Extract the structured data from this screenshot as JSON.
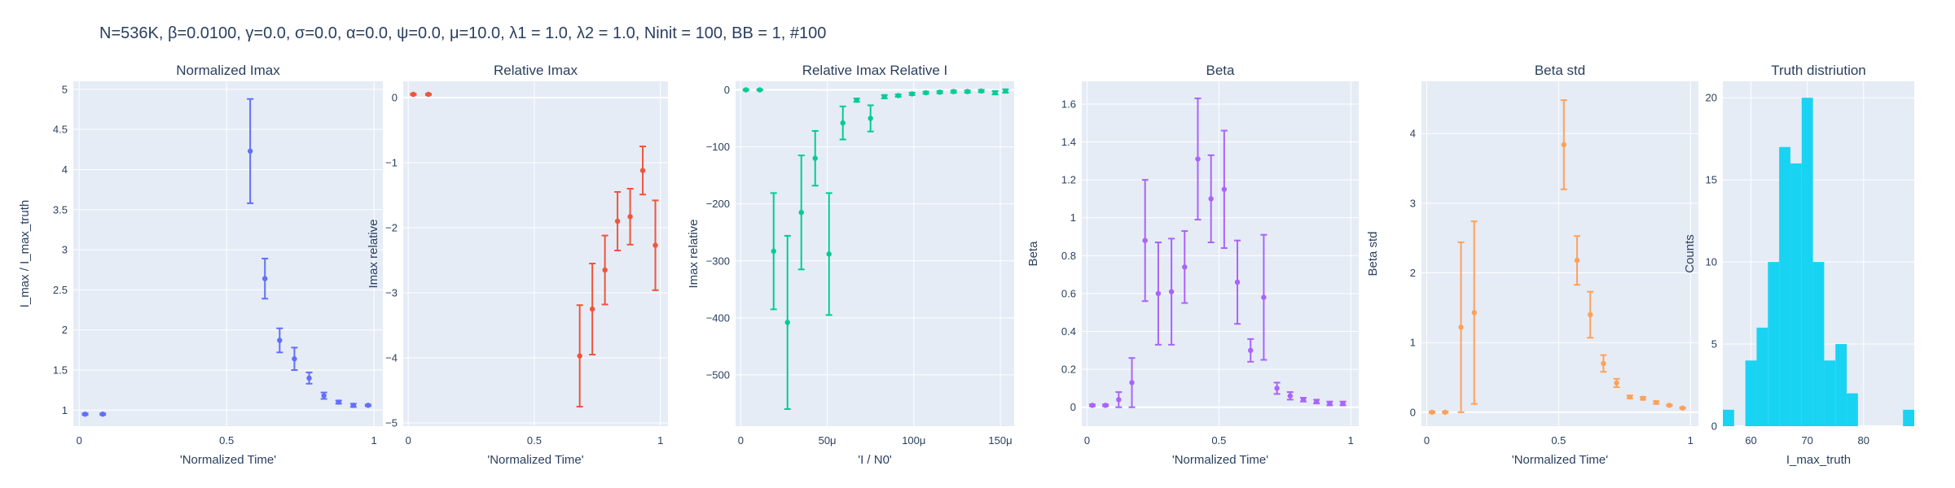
{
  "figure": {
    "title": "N=536K, β=0.0100, γ=0.0, σ=0.0,  α=0.0, ψ=0.0, μ=10.0, λ1 = 1.0, λ2 = 1.0, Ninit = 100, BB = 1, #100"
  },
  "colors": {
    "plot_bg": "#e5ecf6",
    "grid": "#ffffff",
    "text": "#2a3f5f"
  },
  "chart_data": [
    {
      "type": "scatter",
      "title": "Normalized Imax",
      "xlabel": "'Normalized Time'",
      "ylabel": "I_max / I_max_truth",
      "color": "#636efa",
      "xlim": [
        -0.02,
        1.03
      ],
      "ylim": [
        0.8,
        5.1
      ],
      "xticks": [
        {
          "v": 0,
          "t": "0"
        },
        {
          "v": 0.5,
          "t": "0.5"
        },
        {
          "v": 1,
          "t": "1"
        }
      ],
      "yticks": [
        {
          "v": 1,
          "t": "1"
        },
        {
          "v": 1.5,
          "t": "1.5"
        },
        {
          "v": 2,
          "t": "2"
        },
        {
          "v": 2.5,
          "t": "2.5"
        },
        {
          "v": 3,
          "t": "3"
        },
        {
          "v": 3.5,
          "t": "3.5"
        },
        {
          "v": 4,
          "t": "4"
        },
        {
          "v": 4.5,
          "t": "4.5"
        },
        {
          "v": 5,
          "t": "5"
        }
      ],
      "points": [
        {
          "x": 0.02,
          "y": 0.95,
          "lo": 0.94,
          "hi": 0.96
        },
        {
          "x": 0.08,
          "y": 0.95,
          "lo": 0.94,
          "hi": 0.96
        },
        {
          "x": 0.58,
          "y": 4.23,
          "lo": 3.58,
          "hi": 4.88
        },
        {
          "x": 0.63,
          "y": 2.64,
          "lo": 2.39,
          "hi": 2.89
        },
        {
          "x": 0.68,
          "y": 1.87,
          "lo": 1.72,
          "hi": 2.02
        },
        {
          "x": 0.73,
          "y": 1.64,
          "lo": 1.5,
          "hi": 1.78
        },
        {
          "x": 0.78,
          "y": 1.4,
          "lo": 1.33,
          "hi": 1.47
        },
        {
          "x": 0.83,
          "y": 1.18,
          "lo": 1.14,
          "hi": 1.22
        },
        {
          "x": 0.88,
          "y": 1.1,
          "lo": 1.08,
          "hi": 1.12
        },
        {
          "x": 0.93,
          "y": 1.06,
          "lo": 1.04,
          "hi": 1.08
        },
        {
          "x": 0.98,
          "y": 1.06,
          "lo": 1.05,
          "hi": 1.07
        }
      ]
    },
    {
      "type": "scatter",
      "title": "Relative Imax",
      "xlabel": "'Normalized Time'",
      "ylabel": "Imax relative",
      "color": "#ef553b",
      "xlim": [
        -0.02,
        1.03
      ],
      "ylim": [
        -5.05,
        0.25
      ],
      "xticks": [
        {
          "v": 0,
          "t": "0"
        },
        {
          "v": 0.5,
          "t": "0.5"
        },
        {
          "v": 1,
          "t": "1"
        }
      ],
      "yticks": [
        {
          "v": 0,
          "t": "0"
        },
        {
          "v": -1,
          "t": "−1"
        },
        {
          "v": -2,
          "t": "−2"
        },
        {
          "v": -3,
          "t": "−3"
        },
        {
          "v": -4,
          "t": "−4"
        },
        {
          "v": -5,
          "t": "−5"
        }
      ],
      "points": [
        {
          "x": 0.02,
          "y": 0.05,
          "lo": 0.04,
          "hi": 0.06
        },
        {
          "x": 0.08,
          "y": 0.05,
          "lo": 0.04,
          "hi": 0.06
        },
        {
          "x": 0.68,
          "y": -3.97,
          "lo": -4.75,
          "hi": -3.19
        },
        {
          "x": 0.73,
          "y": -3.25,
          "lo": -3.95,
          "hi": -2.55
        },
        {
          "x": 0.78,
          "y": -2.65,
          "lo": -3.18,
          "hi": -2.12
        },
        {
          "x": 0.83,
          "y": -1.9,
          "lo": -2.35,
          "hi": -1.45
        },
        {
          "x": 0.88,
          "y": -1.83,
          "lo": -2.26,
          "hi": -1.4
        },
        {
          "x": 0.93,
          "y": -1.12,
          "lo": -1.49,
          "hi": -0.75
        },
        {
          "x": 0.98,
          "y": -2.27,
          "lo": -2.96,
          "hi": -1.58
        }
      ]
    },
    {
      "type": "scatter",
      "title": "Relative Imax Relative I",
      "xlabel": "'I / N0'",
      "ylabel": "Imax relative",
      "color": "#00cc96",
      "xlim": [
        -3e-06,
        0.000158
      ],
      "ylim": [
        -590,
        15
      ],
      "xticks": [
        {
          "v": 0,
          "t": "0"
        },
        {
          "v": 5e-05,
          "t": "50μ"
        },
        {
          "v": 0.0001,
          "t": "100μ"
        },
        {
          "v": 0.00015,
          "t": "150μ"
        }
      ],
      "yticks": [
        {
          "v": 0,
          "t": "0"
        },
        {
          "v": -100,
          "t": "−100"
        },
        {
          "v": -200,
          "t": "−200"
        },
        {
          "v": -300,
          "t": "−300"
        },
        {
          "v": -400,
          "t": "−400"
        },
        {
          "v": -500,
          "t": "−500"
        }
      ],
      "points": [
        {
          "x": 3e-06,
          "y": 0,
          "lo": -1,
          "hi": 1
        },
        {
          "x": 1.1e-05,
          "y": 0,
          "lo": -1,
          "hi": 1
        },
        {
          "x": 1.9e-05,
          "y": -283,
          "lo": -385,
          "hi": -181
        },
        {
          "x": 2.7e-05,
          "y": -408,
          "lo": -560,
          "hi": -256
        },
        {
          "x": 3.5e-05,
          "y": -215,
          "lo": -315,
          "hi": -115
        },
        {
          "x": 4.3e-05,
          "y": -120,
          "lo": -168,
          "hi": -72
        },
        {
          "x": 5.1e-05,
          "y": -288,
          "lo": -395,
          "hi": -181
        },
        {
          "x": 5.9e-05,
          "y": -58,
          "lo": -87,
          "hi": -29
        },
        {
          "x": 6.7e-05,
          "y": -18,
          "lo": -21,
          "hi": -15
        },
        {
          "x": 7.5e-05,
          "y": -50,
          "lo": -73,
          "hi": -27
        },
        {
          "x": 8.3e-05,
          "y": -12,
          "lo": -15,
          "hi": -9
        },
        {
          "x": 9.1e-05,
          "y": -10,
          "lo": -12,
          "hi": -8
        },
        {
          "x": 9.9e-05,
          "y": -7,
          "lo": -9,
          "hi": -5
        },
        {
          "x": 0.000107,
          "y": -5,
          "lo": -7,
          "hi": -3
        },
        {
          "x": 0.000115,
          "y": -4,
          "lo": -6,
          "hi": -2
        },
        {
          "x": 0.000123,
          "y": -3,
          "lo": -5,
          "hi": -1
        },
        {
          "x": 0.000131,
          "y": -3,
          "lo": -5,
          "hi": -1
        },
        {
          "x": 0.000139,
          "y": -2,
          "lo": -4,
          "hi": 0
        },
        {
          "x": 0.000147,
          "y": -5,
          "lo": -8,
          "hi": -2
        },
        {
          "x": 0.000153,
          "y": -2,
          "lo": -5,
          "hi": 1
        }
      ]
    },
    {
      "type": "scatter",
      "title": "Beta",
      "xlabel": "'Normalized Time'",
      "ylabel": "Beta",
      "color": "#ab63fa",
      "xlim": [
        -0.02,
        1.03
      ],
      "ylim": [
        -0.1,
        1.72
      ],
      "xticks": [
        {
          "v": 0,
          "t": "0"
        },
        {
          "v": 0.5,
          "t": "0.5"
        },
        {
          "v": 1,
          "t": "1"
        }
      ],
      "yticks": [
        {
          "v": 0,
          "t": "0"
        },
        {
          "v": 0.2,
          "t": "0.2"
        },
        {
          "v": 0.4,
          "t": "0.4"
        },
        {
          "v": 0.6,
          "t": "0.6"
        },
        {
          "v": 0.8,
          "t": "0.8"
        },
        {
          "v": 1,
          "t": "1"
        },
        {
          "v": 1.2,
          "t": "1.2"
        },
        {
          "v": 1.4,
          "t": "1.4"
        },
        {
          "v": 1.6,
          "t": "1.6"
        }
      ],
      "points": [
        {
          "x": 0.02,
          "y": 0.01,
          "lo": 0.005,
          "hi": 0.015
        },
        {
          "x": 0.07,
          "y": 0.01,
          "lo": 0.005,
          "hi": 0.015
        },
        {
          "x": 0.12,
          "y": 0.04,
          "lo": 0.0,
          "hi": 0.08
        },
        {
          "x": 0.17,
          "y": 0.13,
          "lo": 0.0,
          "hi": 0.26
        },
        {
          "x": 0.22,
          "y": 0.88,
          "lo": 0.56,
          "hi": 1.2
        },
        {
          "x": 0.27,
          "y": 0.6,
          "lo": 0.33,
          "hi": 0.87
        },
        {
          "x": 0.32,
          "y": 0.61,
          "lo": 0.33,
          "hi": 0.89
        },
        {
          "x": 0.37,
          "y": 0.74,
          "lo": 0.55,
          "hi": 0.93
        },
        {
          "x": 0.42,
          "y": 1.31,
          "lo": 0.99,
          "hi": 1.63
        },
        {
          "x": 0.47,
          "y": 1.1,
          "lo": 0.87,
          "hi": 1.33
        },
        {
          "x": 0.52,
          "y": 1.15,
          "lo": 0.84,
          "hi": 1.46
        },
        {
          "x": 0.57,
          "y": 0.66,
          "lo": 0.44,
          "hi": 0.88
        },
        {
          "x": 0.62,
          "y": 0.3,
          "lo": 0.24,
          "hi": 0.36
        },
        {
          "x": 0.67,
          "y": 0.58,
          "lo": 0.25,
          "hi": 0.91
        },
        {
          "x": 0.72,
          "y": 0.1,
          "lo": 0.07,
          "hi": 0.13
        },
        {
          "x": 0.77,
          "y": 0.06,
          "lo": 0.04,
          "hi": 0.08
        },
        {
          "x": 0.82,
          "y": 0.04,
          "lo": 0.03,
          "hi": 0.05
        },
        {
          "x": 0.87,
          "y": 0.03,
          "lo": 0.02,
          "hi": 0.04
        },
        {
          "x": 0.92,
          "y": 0.02,
          "lo": 0.01,
          "hi": 0.03
        },
        {
          "x": 0.97,
          "y": 0.02,
          "lo": 0.01,
          "hi": 0.03
        }
      ]
    },
    {
      "type": "scatter",
      "title": "Beta std",
      "xlabel": "'Normalized Time'",
      "ylabel": "Beta std",
      "color": "#ffa15a",
      "xlim": [
        -0.02,
        1.03
      ],
      "ylim": [
        -0.2,
        4.75
      ],
      "xticks": [
        {
          "v": 0,
          "t": "0"
        },
        {
          "v": 0.5,
          "t": "0.5"
        },
        {
          "v": 1,
          "t": "1"
        }
      ],
      "yticks": [
        {
          "v": 0,
          "t": "0"
        },
        {
          "v": 1,
          "t": "1"
        },
        {
          "v": 2,
          "t": "2"
        },
        {
          "v": 3,
          "t": "3"
        },
        {
          "v": 4,
          "t": "4"
        }
      ],
      "points": [
        {
          "x": 0.02,
          "y": 0.0,
          "lo": -0.01,
          "hi": 0.01
        },
        {
          "x": 0.07,
          "y": 0.0,
          "lo": -0.01,
          "hi": 0.01
        },
        {
          "x": 0.13,
          "y": 1.22,
          "lo": 0.0,
          "hi": 2.44
        },
        {
          "x": 0.18,
          "y": 1.43,
          "lo": 0.12,
          "hi": 2.74
        },
        {
          "x": 0.52,
          "y": 3.84,
          "lo": 3.2,
          "hi": 4.48
        },
        {
          "x": 0.57,
          "y": 2.18,
          "lo": 1.83,
          "hi": 2.53
        },
        {
          "x": 0.62,
          "y": 1.4,
          "lo": 1.07,
          "hi": 1.73
        },
        {
          "x": 0.67,
          "y": 0.7,
          "lo": 0.58,
          "hi": 0.82
        },
        {
          "x": 0.72,
          "y": 0.42,
          "lo": 0.36,
          "hi": 0.48
        },
        {
          "x": 0.77,
          "y": 0.22,
          "lo": 0.2,
          "hi": 0.24
        },
        {
          "x": 0.82,
          "y": 0.2,
          "lo": 0.18,
          "hi": 0.22
        },
        {
          "x": 0.87,
          "y": 0.14,
          "lo": 0.12,
          "hi": 0.16
        },
        {
          "x": 0.92,
          "y": 0.1,
          "lo": 0.09,
          "hi": 0.11
        },
        {
          "x": 0.97,
          "y": 0.06,
          "lo": 0.05,
          "hi": 0.07
        }
      ]
    },
    {
      "type": "bar",
      "title": "Truth distriution",
      "xlabel": "I_max_truth",
      "ylabel": "Counts",
      "color": "#19d3f3",
      "xlim": [
        55,
        89
      ],
      "ylim": [
        0,
        21
      ],
      "xticks": [
        {
          "v": 60,
          "t": "60"
        },
        {
          "v": 70,
          "t": "70"
        },
        {
          "v": 80,
          "t": "80"
        }
      ],
      "yticks": [
        {
          "v": 0,
          "t": "0"
        },
        {
          "v": 5,
          "t": "5"
        },
        {
          "v": 10,
          "t": "10"
        },
        {
          "v": 15,
          "t": "15"
        },
        {
          "v": 20,
          "t": "20"
        }
      ],
      "bin_width": 2,
      "bins": [
        56,
        58,
        60,
        62,
        64,
        66,
        68,
        70,
        72,
        74,
        76,
        78,
        80,
        82,
        84,
        86,
        88
      ],
      "counts": [
        1,
        0,
        4,
        6,
        10,
        17,
        16,
        20,
        10,
        4,
        5,
        2,
        0,
        0,
        0,
        0,
        1
      ]
    }
  ]
}
